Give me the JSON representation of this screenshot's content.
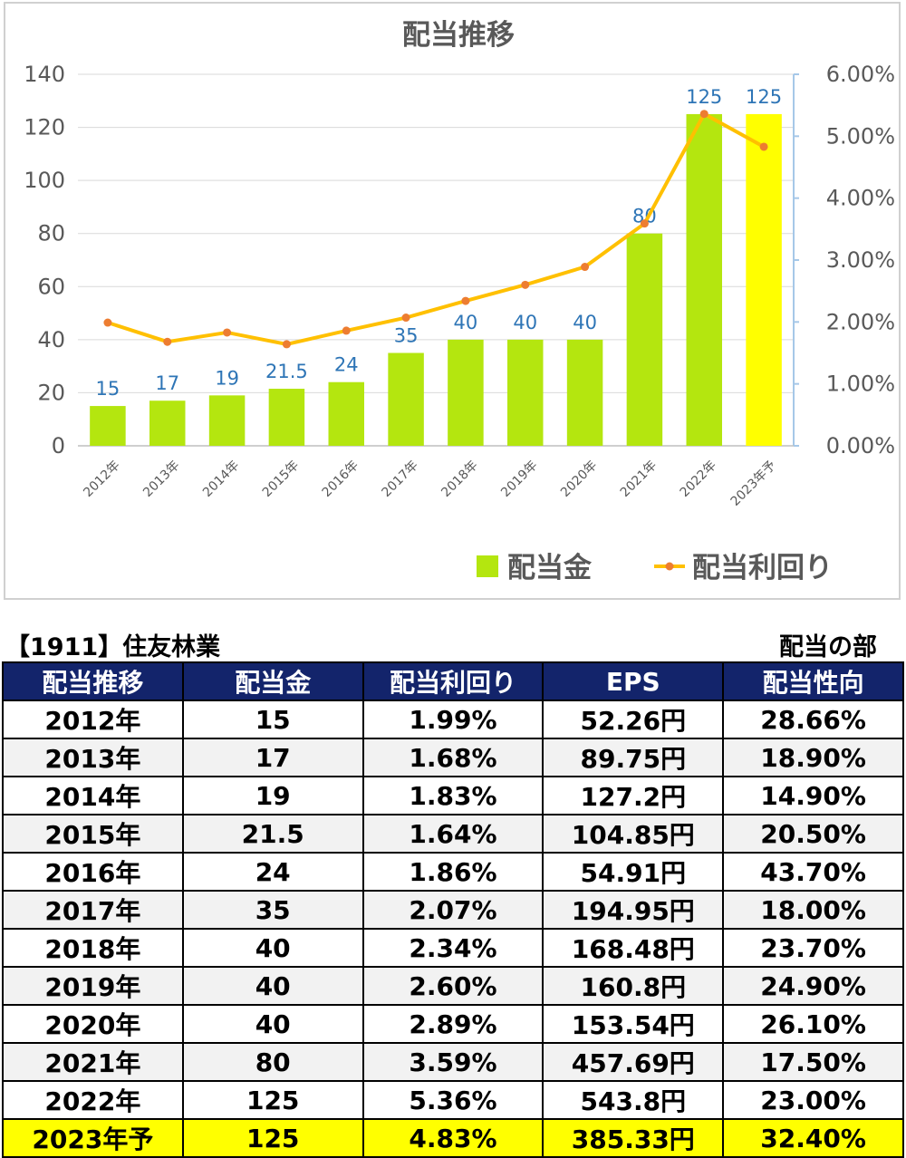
{
  "chart_data": {
    "type": "bar",
    "title": "配当推移",
    "categories": [
      "2012年",
      "2013年",
      "2014年",
      "2015年",
      "2016年",
      "2017年",
      "2018年",
      "2019年",
      "2020年",
      "2021年",
      "2022年",
      "2023年予"
    ],
    "series": [
      {
        "name": "配当金",
        "type": "bar",
        "axis": "left",
        "values": [
          15,
          17,
          19,
          21.5,
          24,
          35,
          40,
          40,
          40,
          80,
          125,
          125
        ],
        "labels": [
          "15",
          "17",
          "19",
          "21.5",
          "24",
          "35",
          "40",
          "40",
          "40",
          "80",
          "125",
          "125"
        ],
        "color": "#b4e60f",
        "forecast_color": "#ffff00"
      },
      {
        "name": "配当利回り",
        "type": "line",
        "axis": "right",
        "values": [
          1.99,
          1.68,
          1.83,
          1.64,
          1.86,
          2.07,
          2.34,
          2.6,
          2.89,
          3.59,
          5.36,
          4.83
        ],
        "color": "#ffc000",
        "marker_color": "#ed7d31"
      }
    ],
    "y_left": {
      "min": 0,
      "max": 140,
      "ticks": [
        "0",
        "20",
        "40",
        "60",
        "80",
        "100",
        "120",
        "140"
      ]
    },
    "y_right": {
      "min": 0,
      "max": 6,
      "ticks": [
        "0.00%",
        "1.00%",
        "2.00%",
        "3.00%",
        "4.00%",
        "5.00%",
        "6.00%"
      ]
    },
    "grid": true,
    "legend_position": "bottom-right"
  },
  "caption": {
    "left": "【1911】住友林業",
    "right": "配当の部"
  },
  "table": {
    "headers": [
      "配当推移",
      "配当金",
      "配当利回り",
      "EPS",
      "配当性向"
    ],
    "rows": [
      [
        "2012年",
        "15",
        "1.99%",
        "52.26円",
        "28.66%"
      ],
      [
        "2013年",
        "17",
        "1.68%",
        "89.75円",
        "18.90%"
      ],
      [
        "2014年",
        "19",
        "1.83%",
        "127.2円",
        "14.90%"
      ],
      [
        "2015年",
        "21.5",
        "1.64%",
        "104.85円",
        "20.50%"
      ],
      [
        "2016年",
        "24",
        "1.86%",
        "54.91円",
        "43.70%"
      ],
      [
        "2017年",
        "35",
        "2.07%",
        "194.95円",
        "18.00%"
      ],
      [
        "2018年",
        "40",
        "2.34%",
        "168.48円",
        "23.70%"
      ],
      [
        "2019年",
        "40",
        "2.60%",
        "160.8円",
        "24.90%"
      ],
      [
        "2020年",
        "40",
        "2.89%",
        "153.54円",
        "26.10%"
      ],
      [
        "2021年",
        "80",
        "3.59%",
        "457.69円",
        "17.50%"
      ],
      [
        "2022年",
        "125",
        "5.36%",
        "543.8円",
        "23.00%"
      ],
      [
        "2023年予",
        "125",
        "4.83%",
        "385.33円",
        "32.40%"
      ]
    ],
    "header_color": "#13246b",
    "highlight_color": "#ffff00"
  }
}
